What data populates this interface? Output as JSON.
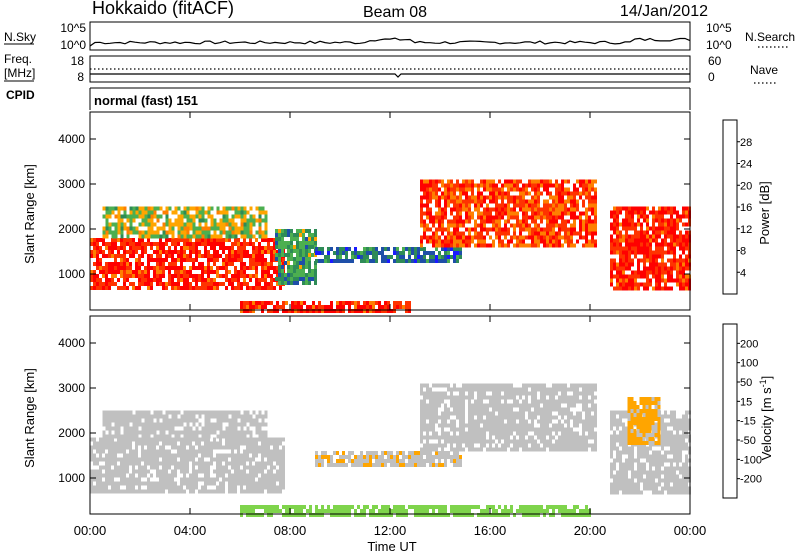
{
  "header": {
    "station": "Hokkaido (fitACF)",
    "beam": "Beam 08",
    "date": "14/Jan/2012"
  },
  "nsky_panel": {
    "left_label": "N.Sky",
    "left_ticks": [
      "10^5",
      "10^0"
    ],
    "right_ticks": [
      "10^5",
      "10^0"
    ],
    "right_label": "N.Search",
    "right_line_style": "dotted"
  },
  "freq_panel": {
    "left_label_1": "Freq.",
    "left_label_2": "[MHz]",
    "left_ticks": [
      "18",
      "8"
    ],
    "right_ticks": [
      "60",
      "0"
    ],
    "right_label": "Nave",
    "right_line_style": "dotted"
  },
  "cpid_panel": {
    "label": "CPID",
    "mode": "normal (fast) 151"
  },
  "x_axis": {
    "ticks": [
      "00:00",
      "04:00",
      "08:00",
      "12:00",
      "16:00",
      "20:00",
      "00:00"
    ],
    "label": "Time UT",
    "range_hours": [
      0,
      24
    ]
  },
  "chart_data": [
    {
      "type": "heatmap",
      "name_printed": "",
      "ylabel": "Slant Range [km]",
      "yticks": [
        "1000",
        "2000",
        "3000",
        "4000"
      ],
      "ylim": [
        200,
        4600
      ],
      "colorbar": {
        "label": "Power [dB]",
        "ticks": [
          "4",
          "8",
          "12",
          "16",
          "20",
          "24",
          "28"
        ],
        "range": [
          0,
          32
        ],
        "colors": [
          "#1a1aff",
          "#1e4fa8",
          "#2e8b57",
          "#4caf50",
          "#ffa500",
          "#ff7f00",
          "#ff3300",
          "#ff0000"
        ]
      },
      "regions": [
        {
          "t": [
            0.0,
            7.8
          ],
          "r": [
            700,
            1800
          ],
          "value": 28
        },
        {
          "t": [
            0.5,
            7.0
          ],
          "r": [
            1800,
            2500
          ],
          "value": 16
        },
        {
          "t": [
            7.4,
            9.0
          ],
          "r": [
            800,
            2000
          ],
          "value": 12
        },
        {
          "t": [
            9.0,
            14.8
          ],
          "r": [
            1300,
            1600
          ],
          "value": 8
        },
        {
          "t": [
            13.2,
            20.2
          ],
          "r": [
            1600,
            3100
          ],
          "value": 26
        },
        {
          "t": [
            20.8,
            24.0
          ],
          "r": [
            700,
            2500
          ],
          "value": 28
        },
        {
          "t": [
            6.0,
            12.8
          ],
          "r": [
            200,
            400
          ],
          "value": 28
        }
      ]
    },
    {
      "type": "heatmap",
      "name_printed": "",
      "ylabel": "Slant Range [km]",
      "yticks": [
        "1000",
        "2000",
        "3000",
        "4000"
      ],
      "ylim": [
        200,
        4600
      ],
      "colorbar": {
        "label": "Velocity [m s",
        "label_superscript": "-1",
        "label_end": "]",
        "ticks": [
          "200",
          "100",
          "50",
          "15",
          "-15",
          "-50",
          "-100",
          "-200"
        ],
        "range": [
          -250,
          250
        ],
        "colors": [
          "#1a1aaa",
          "#1e4fa8",
          "#2e8b57",
          "#7fd44c",
          "#c0c0c0",
          "#ffa500",
          "#ff7f00",
          "#ff3300",
          "#ff0000"
        ]
      },
      "regions": [
        {
          "t": [
            0.0,
            7.8
          ],
          "r": [
            700,
            1900
          ],
          "value": 0
        },
        {
          "t": [
            0.5,
            7.0
          ],
          "r": [
            1900,
            2500
          ],
          "value": 0
        },
        {
          "t": [
            9.0,
            14.8
          ],
          "r": [
            1300,
            1600
          ],
          "value": 20
        },
        {
          "t": [
            13.2,
            20.2
          ],
          "r": [
            1600,
            3100
          ],
          "value": 0
        },
        {
          "t": [
            20.8,
            24.0
          ],
          "r": [
            700,
            2500
          ],
          "value": 0
        },
        {
          "t": [
            21.5,
            22.8
          ],
          "r": [
            1800,
            2800
          ],
          "value": 40
        },
        {
          "t": [
            6.0,
            20.0
          ],
          "r": [
            200,
            400
          ],
          "value": -60
        }
      ]
    }
  ]
}
